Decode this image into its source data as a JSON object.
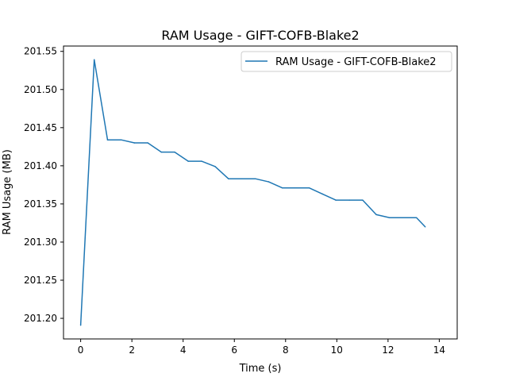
{
  "chart_data": {
    "type": "line",
    "title": "RAM Usage - GIFT-COFB-Blake2",
    "xlabel": "Time (s)",
    "ylabel": "RAM Usage (MB)",
    "xlim": [
      -0.67,
      14.7
    ],
    "ylim": [
      201.173,
      201.557
    ],
    "xticks": [
      0,
      2,
      4,
      6,
      8,
      10,
      12,
      14
    ],
    "xtick_labels": [
      "0",
      "2",
      "4",
      "6",
      "8",
      "10",
      "12",
      "14"
    ],
    "yticks": [
      201.2,
      201.25,
      201.3,
      201.35,
      201.4,
      201.45,
      201.5,
      201.55
    ],
    "ytick_labels": [
      "201.20",
      "201.25",
      "201.30",
      "201.35",
      "201.40",
      "201.45",
      "201.50",
      "201.55"
    ],
    "grid": false,
    "legend_position": "top-right",
    "color": "#1f77b4",
    "series": [
      {
        "name": "RAM Usage - GIFT-COFB-Blake2",
        "x": [
          0.0,
          0.53,
          1.05,
          1.58,
          2.1,
          2.62,
          3.15,
          3.67,
          4.2,
          4.72,
          5.25,
          5.77,
          6.29,
          6.82,
          7.34,
          7.87,
          8.39,
          8.92,
          9.44,
          9.96,
          10.49,
          11.01,
          11.54,
          12.06,
          12.59,
          13.11,
          13.45
        ],
        "values": [
          201.191,
          201.539,
          201.434,
          201.434,
          201.43,
          201.43,
          201.418,
          201.418,
          201.406,
          201.406,
          201.399,
          201.383,
          201.383,
          201.383,
          201.379,
          201.371,
          201.371,
          201.371,
          201.363,
          201.355,
          201.355,
          201.355,
          201.336,
          201.332,
          201.332,
          201.332,
          201.32
        ]
      }
    ]
  }
}
